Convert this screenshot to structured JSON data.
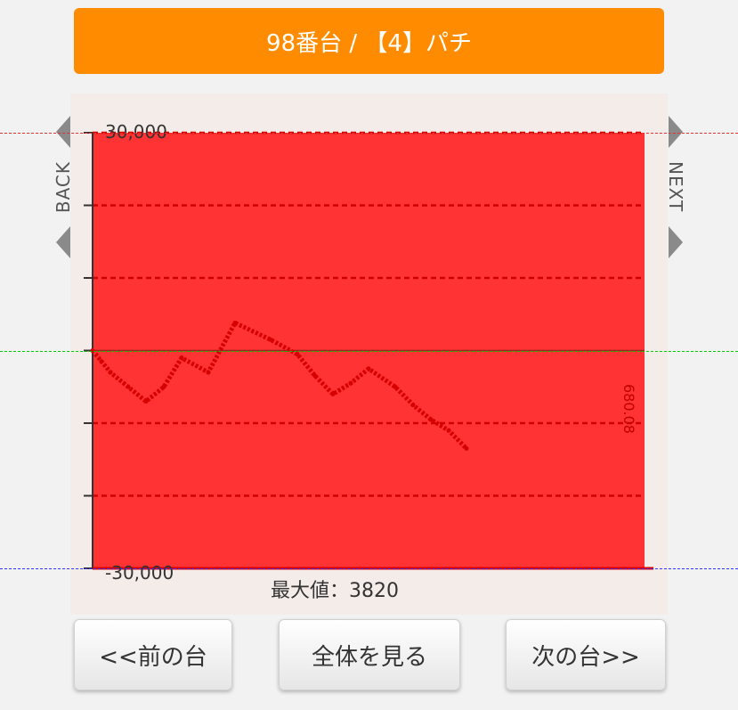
{
  "header": {
    "title": "98番台 / 【4】パチ"
  },
  "chart_data": {
    "type": "line",
    "title": "",
    "ylim": [
      -30000,
      30000
    ],
    "y_tick_labels": [
      "30,000",
      "-30,000"
    ],
    "y_ticks": [
      30000,
      20000,
      10000,
      0,
      -10000,
      -20000,
      -30000
    ],
    "max_label": "最大値：3820",
    "side_value": "680.08",
    "series": [
      {
        "color": "#d60000",
        "x": [
          0,
          10,
          20,
          40,
          60,
          80,
          100,
          130,
          160,
          200,
          230,
          250,
          270,
          290,
          310,
          340,
          360,
          380,
          400,
          420
        ],
        "values": [
          0,
          -1500,
          -3000,
          -5000,
          -7000,
          -5000,
          -1000,
          -3000,
          3820,
          1500,
          -500,
          -3500,
          -6000,
          -4500,
          -2500,
          -5000,
          -7500,
          -9500,
          -11000,
          -13500
        ]
      }
    ],
    "colors": {
      "fill": "#ff3333",
      "zero_line": "#00cc00",
      "top_line": "#e03030",
      "bottom_line": "#3030ff"
    }
  },
  "panel": {
    "back_label": "BACK",
    "next_label": "NEXT"
  },
  "buttons": {
    "prev": "<<前の台",
    "all": "全体を見る",
    "next": "次の台>>"
  }
}
